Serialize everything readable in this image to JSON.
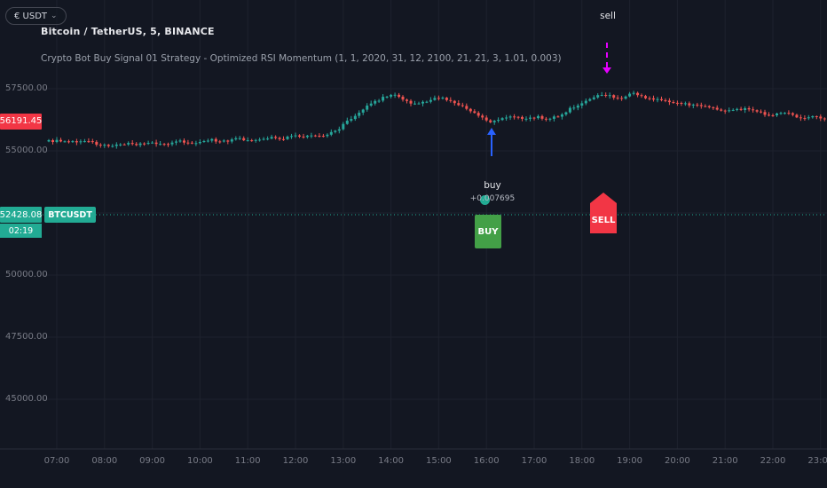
{
  "toolbar": {
    "pill_label": "€ USDT",
    "pill_chevron": "⌄"
  },
  "header": {
    "symbol_title": "Bitcoin / TetherUS, 5, BINANCE",
    "strategy_title": "Crypto Bot Buy Signal 01 Strategy - Optimized RSI Momentum (1, 1, 2020, 31, 12, 2100, 21, 21, 3, 1.01, 0.003)"
  },
  "price_axis": {
    "labels": [
      "57500.00",
      "55000.00",
      "50000.00",
      "47500.00",
      "45000.00"
    ],
    "last_price": {
      "value": "56191.45",
      "color": "#f23645"
    },
    "tracked_price": {
      "value": "52428.08",
      "symbol": "BTCUSDT",
      "countdown": "02:19",
      "color": "#22ab94"
    }
  },
  "time_axis": {
    "labels": [
      "07:00",
      "08:00",
      "09:00",
      "10:00",
      "11:00",
      "12:00",
      "13:00",
      "14:00",
      "15:00",
      "16:00",
      "17:00",
      "18:00",
      "19:00",
      "20:00",
      "21:00",
      "22:00",
      "23:00"
    ]
  },
  "colors": {
    "background": "#131722",
    "grid": "#1e222d",
    "up_candle": "#26a69a",
    "down_candle": "#ef5350",
    "accent_teal": "#22ab94",
    "alert_red": "#f23645",
    "buy_green": "#43a047",
    "signal_blue": "#2962ff",
    "signal_magenta": "#e500ff"
  },
  "chart_data": {
    "type": "candlestick",
    "title": "Bitcoin / TetherUS, 5, BINANCE",
    "symbol": "BTCUSDT",
    "exchange": "BINANCE",
    "interval_minutes": 5,
    "up_color": "#26a69a",
    "down_color": "#ef5350",
    "last_price": 56191.45,
    "price_line": 52428.08,
    "y_axis": {
      "visible_min": 42500,
      "visible_max": 58600,
      "gridlines": [
        57500,
        55000,
        52500,
        50000,
        47500,
        45000
      ]
    },
    "x_axis": {
      "start_hour": 6.75,
      "end_hour": 23.2,
      "tick_hours": [
        7,
        8,
        9,
        10,
        11,
        12,
        13,
        14,
        15,
        16,
        17,
        18,
        19,
        20,
        21,
        22,
        23
      ]
    },
    "signals": [
      {
        "type": "buy",
        "time": "16:05",
        "label": "buy",
        "qty": "+0.007695",
        "price": 56150
      },
      {
        "type": "sell",
        "time": "18:30",
        "label": "sell",
        "price": 57250
      }
    ],
    "trades": [
      {
        "label": "BUY",
        "time": "16:05"
      },
      {
        "label": "SELL",
        "time": "18:35"
      }
    ],
    "anchors": [
      [
        6.75,
        55380
      ],
      [
        7.0,
        55400
      ],
      [
        7.3,
        55340
      ],
      [
        7.6,
        55420
      ],
      [
        7.9,
        55250
      ],
      [
        8.15,
        55170
      ],
      [
        8.4,
        55300
      ],
      [
        8.7,
        55260
      ],
      [
        9.0,
        55330
      ],
      [
        9.3,
        55270
      ],
      [
        9.6,
        55380
      ],
      [
        9.9,
        55330
      ],
      [
        10.2,
        55440
      ],
      [
        10.5,
        55390
      ],
      [
        10.8,
        55480
      ],
      [
        11.1,
        55420
      ],
      [
        11.4,
        55540
      ],
      [
        11.7,
        55490
      ],
      [
        12.0,
        55600
      ],
      [
        12.3,
        55570
      ],
      [
        12.6,
        55640
      ],
      [
        12.85,
        55800
      ],
      [
        13.1,
        56200
      ],
      [
        13.35,
        56600
      ],
      [
        13.6,
        56900
      ],
      [
        13.85,
        57150
      ],
      [
        14.05,
        57250
      ],
      [
        14.3,
        57000
      ],
      [
        14.55,
        56850
      ],
      [
        14.8,
        57050
      ],
      [
        15.05,
        57150
      ],
      [
        15.3,
        56950
      ],
      [
        15.55,
        56750
      ],
      [
        15.8,
        56450
      ],
      [
        16.05,
        56150
      ],
      [
        16.3,
        56300
      ],
      [
        16.55,
        56400
      ],
      [
        16.8,
        56280
      ],
      [
        17.05,
        56380
      ],
      [
        17.3,
        56280
      ],
      [
        17.55,
        56450
      ],
      [
        17.8,
        56750
      ],
      [
        18.05,
        57000
      ],
      [
        18.3,
        57200
      ],
      [
        18.55,
        57250
      ],
      [
        18.8,
        57050
      ],
      [
        19.05,
        57320
      ],
      [
        19.3,
        57150
      ],
      [
        19.6,
        57050
      ],
      [
        19.9,
        56950
      ],
      [
        20.2,
        56880
      ],
      [
        20.5,
        56800
      ],
      [
        20.8,
        56700
      ],
      [
        21.1,
        56600
      ],
      [
        21.4,
        56700
      ],
      [
        21.7,
        56550
      ],
      [
        22.0,
        56420
      ],
      [
        22.3,
        56560
      ],
      [
        22.6,
        56300
      ],
      [
        22.9,
        56380
      ],
      [
        23.1,
        56250
      ],
      [
        23.25,
        56191.45
      ]
    ]
  }
}
